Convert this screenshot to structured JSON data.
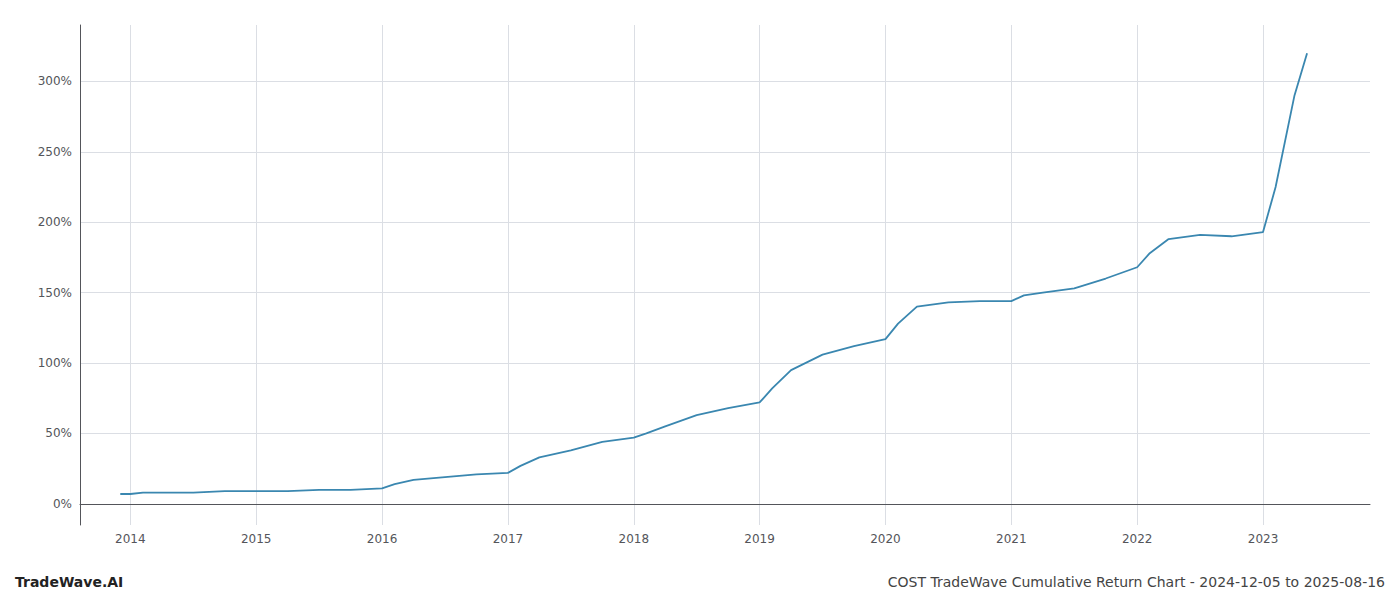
{
  "chart_data": {
    "type": "line",
    "title": "COST TradeWave Cumulative Return Chart - 2024-12-05 to 2025-08-16",
    "annotations": [
      "TradeWave.AI"
    ],
    "color": "#3a87b0",
    "grid": true,
    "x": [
      2013.92,
      2014.0,
      2014.1,
      2014.25,
      2014.5,
      2014.75,
      2015.0,
      2015.1,
      2015.25,
      2015.5,
      2015.75,
      2016.0,
      2016.1,
      2016.25,
      2016.5,
      2016.75,
      2017.0,
      2017.1,
      2017.25,
      2017.5,
      2017.75,
      2018.0,
      2018.1,
      2018.25,
      2018.5,
      2018.75,
      2019.0,
      2019.1,
      2019.25,
      2019.5,
      2019.75,
      2020.0,
      2020.1,
      2020.25,
      2020.5,
      2020.75,
      2021.0,
      2021.1,
      2021.25,
      2021.5,
      2021.75,
      2022.0,
      2022.1,
      2022.25,
      2022.5,
      2022.75,
      2023.0,
      2023.1,
      2023.25,
      2023.35
    ],
    "values": [
      7,
      7,
      8,
      8,
      8,
      9,
      9,
      9,
      9,
      10,
      10,
      11,
      14,
      17,
      19,
      21,
      22,
      27,
      33,
      38,
      44,
      47,
      50,
      55,
      63,
      68,
      72,
      82,
      95,
      106,
      112,
      117,
      128,
      140,
      143,
      144,
      144,
      148,
      150,
      153,
      160,
      168,
      178,
      188,
      191,
      190,
      193,
      225,
      290,
      320
    ],
    "xlim": [
      2013.6,
      2023.85
    ],
    "xticks": [
      2014,
      2015,
      2016,
      2017,
      2018,
      2019,
      2020,
      2021,
      2022,
      2023
    ],
    "ylim": [
      -15,
      340
    ],
    "yticks": [
      {
        "value": 0,
        "label": "0%"
      },
      {
        "value": 50,
        "label": "50%"
      },
      {
        "value": 100,
        "label": "100%"
      },
      {
        "value": 150,
        "label": "150%"
      },
      {
        "value": 200,
        "label": "200%"
      },
      {
        "value": 250,
        "label": "250%"
      },
      {
        "value": 300,
        "label": "300%"
      }
    ]
  }
}
